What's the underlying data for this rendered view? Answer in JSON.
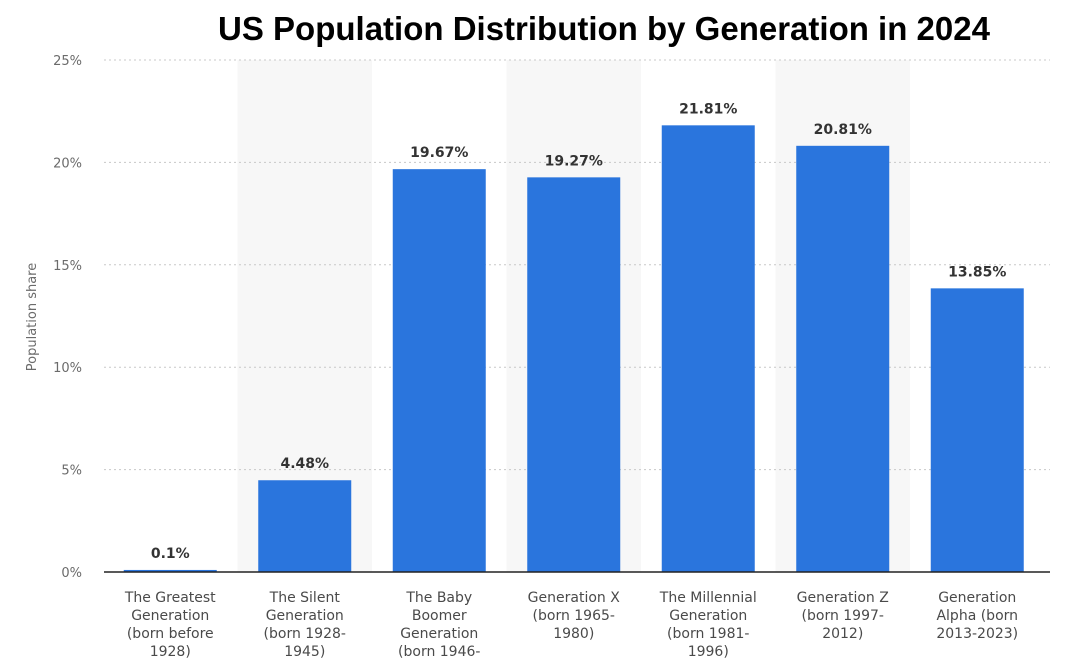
{
  "chart_data": {
    "type": "bar",
    "title": "US Population Distribution by Generation in 2024",
    "xlabel": "",
    "ylabel": "Population share",
    "ylim": [
      0,
      25
    ],
    "yticks": [
      0,
      5,
      10,
      15,
      20,
      25
    ],
    "ytick_labels": [
      "0%",
      "5%",
      "10%",
      "15%",
      "20%",
      "25%"
    ],
    "grid": true,
    "categories": [
      [
        "The Greatest",
        "Generation",
        "(born before",
        "1928)"
      ],
      [
        "The Silent",
        "Generation",
        "(born 1928-",
        "1945)"
      ],
      [
        "The Baby",
        "Boomer",
        "Generation",
        "(born 1946-"
      ],
      [
        "Generation X",
        "(born 1965-",
        "1980)"
      ],
      [
        "The Millennial",
        "Generation",
        "(born 1981-",
        "1996)"
      ],
      [
        "Generation Z",
        "(born 1997-",
        "2012)"
      ],
      [
        "Generation",
        "Alpha (born",
        "2013-2023)"
      ]
    ],
    "values": [
      0.1,
      4.48,
      19.67,
      19.27,
      21.81,
      20.81,
      13.85
    ],
    "value_labels": [
      "0.1%",
      "4.48%",
      "19.67%",
      "19.27%",
      "21.81%",
      "20.81%",
      "13.85%"
    ],
    "colors": {
      "bar": "#2a75dd",
      "band": "#f7f7f7"
    }
  }
}
